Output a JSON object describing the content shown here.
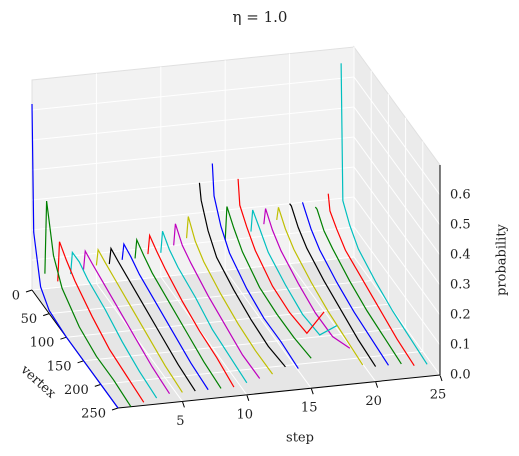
{
  "chart_data": {
    "type": "waterfall3d",
    "title": "η = 1.0",
    "xlabel": "vertex",
    "ylabel": "step",
    "zlabel": "probability",
    "x": [
      0,
      5,
      25,
      50,
      100,
      150,
      200,
      250
    ],
    "xlim": [
      0,
      250
    ],
    "xticks": [
      0,
      50,
      100,
      150,
      200,
      250
    ],
    "ylim": [
      0,
      25
    ],
    "yticks": [
      5,
      10,
      15,
      20,
      25
    ],
    "zlim": [
      0,
      0.7
    ],
    "zticks": [
      0.0,
      0.1,
      0.2,
      0.3,
      0.4,
      0.5,
      0.6
    ],
    "series": [
      {
        "step": 0,
        "color": "#0000ff",
        "values": [
          0.62,
          0.2,
          0.05,
          0.01,
          0,
          0,
          0,
          0
        ]
      },
      {
        "step": 1,
        "color": "#008000",
        "values": [
          0.05,
          0.3,
          0.15,
          0.08,
          0.03,
          0.01,
          0.01,
          0
        ]
      },
      {
        "step": 2,
        "color": "#ff0000",
        "values": [
          0.02,
          0.16,
          0.13,
          0.1,
          0.06,
          0.03,
          0.02,
          0.01
        ]
      },
      {
        "step": 3,
        "color": "#00bfbf",
        "values": [
          0.04,
          0.12,
          0.12,
          0.1,
          0.08,
          0.05,
          0.03,
          0.02
        ]
      },
      {
        "step": 4,
        "color": "#bf00bf",
        "values": [
          0.05,
          0.12,
          0.11,
          0.1,
          0.08,
          0.06,
          0.04,
          0.03
        ]
      },
      {
        "step": 5,
        "color": "#bfbf00",
        "values": [
          0.06,
          0.12,
          0.11,
          0.1,
          0.08,
          0.06,
          0.04,
          0.03
        ]
      },
      {
        "step": 6,
        "color": "#000000",
        "values": [
          0.06,
          0.12,
          0.11,
          0.1,
          0.08,
          0.06,
          0.04,
          0.03
        ]
      },
      {
        "step": 7,
        "color": "#0000ff",
        "values": [
          0.07,
          0.13,
          0.12,
          0.1,
          0.08,
          0.06,
          0.04,
          0.03
        ]
      },
      {
        "step": 8,
        "color": "#008000",
        "values": [
          0.07,
          0.14,
          0.12,
          0.1,
          0.08,
          0.06,
          0.04,
          0.03
        ]
      },
      {
        "step": 9,
        "color": "#ff0000",
        "values": [
          0.08,
          0.15,
          0.13,
          0.11,
          0.08,
          0.06,
          0.05,
          0.03
        ]
      },
      {
        "step": 10,
        "color": "#00bfbf",
        "values": [
          0.08,
          0.16,
          0.13,
          0.11,
          0.09,
          0.06,
          0.05,
          0.04
        ]
      },
      {
        "step": 11,
        "color": "#bf00bf",
        "values": [
          0.1,
          0.18,
          0.14,
          0.12,
          0.09,
          0.07,
          0.05,
          0.05
        ]
      },
      {
        "step": 12,
        "color": "#bfbf00",
        "values": [
          0.12,
          0.2,
          0.15,
          0.12,
          0.09,
          0.07,
          0.06,
          0.06
        ]
      },
      {
        "step": 13,
        "color": "#000000",
        "values": [
          0.3,
          0.25,
          0.18,
          0.13,
          0.1,
          0.08,
          0.07,
          0.08
        ]
      },
      {
        "step": 14,
        "color": "#0000ff",
        "values": [
          0.36,
          0.26,
          0.19,
          0.14,
          0.1,
          0.08,
          0.08,
          0.07
        ]
      },
      {
        "step": 15,
        "color": "#008000",
        "values": [
          0.1,
          0.22,
          0.18,
          0.14,
          0.1,
          0.09,
          0.09,
          0.1
        ]
      },
      {
        "step": 16,
        "color": "#ff0000",
        "values": [
          0.3,
          0.22,
          0.18,
          0.14,
          0.1,
          0.09,
          0.1,
          0.25
        ]
      },
      {
        "step": 17,
        "color": "#00bfbf",
        "values": [
          0.12,
          0.2,
          0.17,
          0.13,
          0.1,
          0.08,
          0.09,
          0.2
        ]
      },
      {
        "step": 18,
        "color": "#bf00bf",
        "values": [
          0.14,
          0.2,
          0.16,
          0.13,
          0.1,
          0.08,
          0.08,
          0.12
        ]
      },
      {
        "step": 19,
        "color": "#bfbf00",
        "values": [
          0.15,
          0.2,
          0.16,
          0.13,
          0.1,
          0.08,
          0.07,
          0.06
        ]
      },
      {
        "step": 20,
        "color": "#000000",
        "values": [
          0.2,
          0.2,
          0.16,
          0.13,
          0.1,
          0.08,
          0.06,
          0.05
        ]
      },
      {
        "step": 21,
        "color": "#0000ff",
        "values": [
          0.2,
          0.19,
          0.15,
          0.12,
          0.09,
          0.07,
          0.06,
          0.05
        ]
      },
      {
        "step": 22,
        "color": "#008000",
        "values": [
          0.18,
          0.18,
          0.14,
          0.12,
          0.09,
          0.07,
          0.06,
          0.05
        ]
      },
      {
        "step": 23,
        "color": "#ff0000",
        "values": [
          0.22,
          0.17,
          0.14,
          0.11,
          0.09,
          0.07,
          0.05,
          0.04
        ]
      },
      {
        "step": 24,
        "color": "#00bfbf",
        "values": [
          0.65,
          0.2,
          0.15,
          0.11,
          0.08,
          0.06,
          0.05,
          0.04
        ]
      }
    ]
  }
}
